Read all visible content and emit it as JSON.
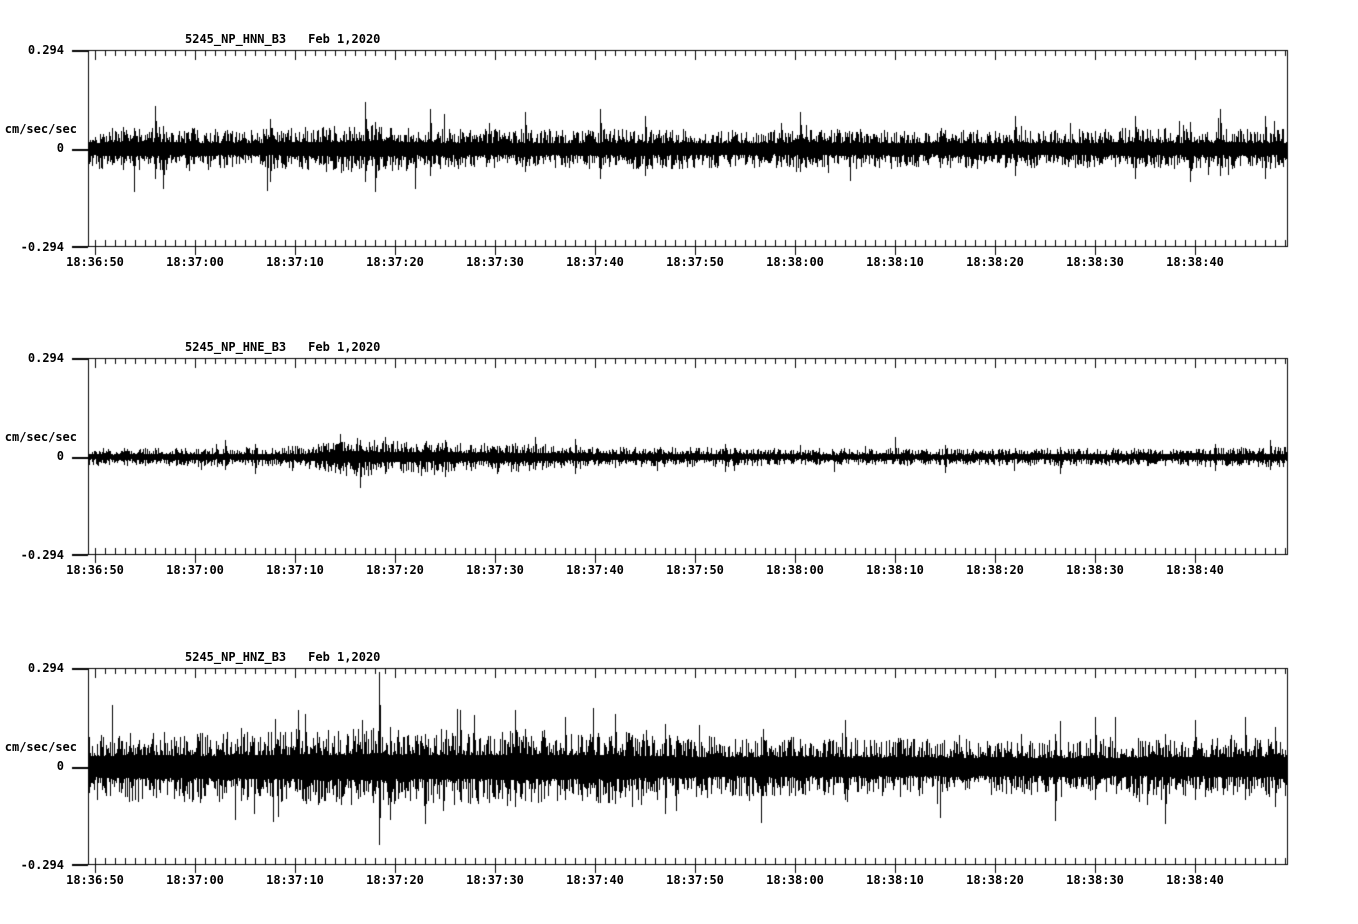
{
  "page": {
    "background": "#ffffff",
    "ink": "#000000"
  },
  "chart_data": {
    "type": "line",
    "kind": "seismogram",
    "ylabel": "cm/sec/sec",
    "ylim": [
      -0.294,
      0.294
    ],
    "y_tick_labels": [
      "0.294",
      "0",
      "-0.294"
    ],
    "x_tick_labels": [
      "18:36:50",
      "18:37:00",
      "18:37:10",
      "18:37:20",
      "18:37:30",
      "18:37:40",
      "18:37:50",
      "18:38:00",
      "18:38:10",
      "18:38:20",
      "18:38:30",
      "18:38:40"
    ],
    "x_minor_tick_seconds": 1,
    "x_major_tick_seconds": 10,
    "grid": false,
    "legend": "none",
    "panels": [
      {
        "station": "5245_NP_HNN_B3",
        "date": "Feb 1,2020",
        "units": "cm/sec/sec",
        "peak_scale": 0.294,
        "envelope": [
          [
            0,
            0.062
          ],
          [
            5,
            0.07
          ],
          [
            8,
            0.065
          ],
          [
            15,
            0.06
          ],
          [
            20,
            0.065
          ],
          [
            25,
            0.072
          ],
          [
            28,
            0.075
          ],
          [
            32,
            0.065
          ],
          [
            38,
            0.062
          ],
          [
            45,
            0.06
          ],
          [
            52,
            0.062
          ],
          [
            60,
            0.06
          ],
          [
            68,
            0.057
          ],
          [
            75,
            0.06
          ],
          [
            82,
            0.057
          ],
          [
            88,
            0.06
          ],
          [
            95,
            0.057
          ],
          [
            100,
            0.06
          ],
          [
            104,
            0.064
          ],
          [
            108,
            0.06
          ],
          [
            112,
            0.065
          ],
          [
            119,
            0.062
          ]
        ],
        "spikes": [
          [
            6,
            0.13,
            0.09
          ],
          [
            6.8,
            0.07,
            0.12
          ],
          [
            17.5,
            0.09,
            0.1
          ],
          [
            27,
            0.14,
            0.1
          ],
          [
            28,
            0.08,
            0.13
          ],
          [
            33.5,
            0.12,
            0.08
          ],
          [
            43,
            0.11,
            0.07
          ],
          [
            50.5,
            0.12,
            0.09
          ],
          [
            55,
            0.1,
            0.08
          ],
          [
            70.5,
            0.11,
            0.07
          ],
          [
            92,
            0.1,
            0.08
          ],
          [
            104,
            0.1,
            0.09
          ],
          [
            109.5,
            0.08,
            0.1
          ],
          [
            112.5,
            0.12,
            0.08
          ],
          [
            117,
            0.1,
            0.09
          ]
        ],
        "noise": {
          "floor": 0.3,
          "shape": 1.8,
          "spike_probability": 0.03,
          "spike_gain": 1.6
        }
      },
      {
        "station": "5245_NP_HNE_B3",
        "date": "Feb 1,2020",
        "units": "cm/sec/sec",
        "peak_scale": 0.294,
        "envelope": [
          [
            0,
            0.026
          ],
          [
            8,
            0.028
          ],
          [
            13,
            0.03
          ],
          [
            18,
            0.028
          ],
          [
            22,
            0.04
          ],
          [
            24,
            0.055
          ],
          [
            26,
            0.06
          ],
          [
            28,
            0.055
          ],
          [
            31,
            0.048
          ],
          [
            34,
            0.05
          ],
          [
            37,
            0.045
          ],
          [
            41,
            0.045
          ],
          [
            45,
            0.042
          ],
          [
            48,
            0.038
          ],
          [
            52,
            0.032
          ],
          [
            58,
            0.03
          ],
          [
            65,
            0.028
          ],
          [
            72,
            0.026
          ],
          [
            80,
            0.027
          ],
          [
            88,
            0.025
          ],
          [
            95,
            0.027
          ],
          [
            102,
            0.026
          ],
          [
            108,
            0.028
          ],
          [
            114,
            0.03
          ],
          [
            119,
            0.032
          ]
        ],
        "spikes": [
          [
            13,
            0.05,
            0.04
          ],
          [
            16,
            0.04,
            0.05
          ],
          [
            24.5,
            0.07,
            0.05
          ],
          [
            26.5,
            0.05,
            0.095
          ],
          [
            29,
            0.06,
            0.05
          ],
          [
            35,
            0.05,
            0.06
          ],
          [
            44,
            0.06,
            0.04
          ],
          [
            48,
            0.055,
            0.05
          ],
          [
            63,
            0.04,
            0.045
          ],
          [
            85,
            0.035,
            0.05
          ],
          [
            96.5,
            0.03,
            0.05
          ],
          [
            112,
            0.04,
            0.04
          ],
          [
            117.5,
            0.05,
            0.04
          ]
        ],
        "noise": {
          "floor": 0.28,
          "shape": 1.9,
          "spike_probability": 0.025,
          "spike_gain": 1.7
        }
      },
      {
        "station": "5245_NP_HNZ_B3",
        "date": "Feb 1,2020",
        "units": "cm/sec/sec",
        "peak_scale": 0.294,
        "envelope": [
          [
            0,
            0.1
          ],
          [
            5,
            0.11
          ],
          [
            10,
            0.105
          ],
          [
            15,
            0.11
          ],
          [
            20,
            0.115
          ],
          [
            25,
            0.115
          ],
          [
            28,
            0.12
          ],
          [
            32,
            0.11
          ],
          [
            36,
            0.115
          ],
          [
            40,
            0.11
          ],
          [
            44,
            0.112
          ],
          [
            48,
            0.108
          ],
          [
            52,
            0.11
          ],
          [
            56,
            0.1
          ],
          [
            60,
            0.095
          ],
          [
            64,
            0.09
          ],
          [
            68,
            0.092
          ],
          [
            72,
            0.088
          ],
          [
            76,
            0.085
          ],
          [
            80,
            0.09
          ],
          [
            84,
            0.085
          ],
          [
            88,
            0.085
          ],
          [
            92,
            0.088
          ],
          [
            96,
            0.085
          ],
          [
            100,
            0.085
          ],
          [
            104,
            0.088
          ],
          [
            108,
            0.09
          ],
          [
            112,
            0.09
          ],
          [
            116,
            0.095
          ],
          [
            119,
            0.095
          ]
        ],
        "spikes": [
          [
            21,
            0.16,
            0.1
          ],
          [
            28.4,
            0.285,
            0.235
          ],
          [
            29.5,
            0.12,
            0.16
          ],
          [
            33,
            0.1,
            0.17
          ],
          [
            36.5,
            0.17,
            0.1
          ],
          [
            42,
            0.17,
            0.12
          ],
          [
            47,
            0.15,
            0.1
          ],
          [
            52,
            0.16,
            0.11
          ],
          [
            57,
            0.13,
            0.14
          ],
          [
            75,
            0.14,
            0.1
          ],
          [
            96,
            0.1,
            0.16
          ],
          [
            100,
            0.15,
            0.1
          ],
          [
            107,
            0.1,
            0.17
          ],
          [
            110,
            0.14,
            0.1
          ],
          [
            115,
            0.15,
            0.1
          ],
          [
            118,
            0.12,
            0.12
          ]
        ],
        "noise": {
          "floor": 0.32,
          "shape": 2.0,
          "spike_probability": 0.04,
          "spike_gain": 1.5
        }
      }
    ]
  }
}
